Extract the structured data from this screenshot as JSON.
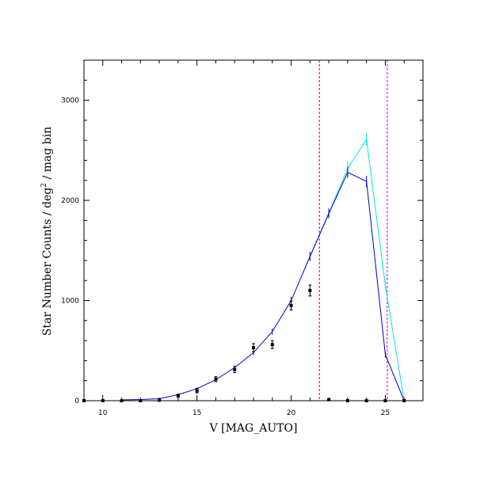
{
  "chart_data": {
    "type": "line",
    "title": "",
    "xlabel": "V [MAG_AUTO]",
    "ylabel_main": "Star Number Counts / deg",
    "ylabel_sup": "2",
    "ylabel_tail": " / mag bin",
    "xlim": [
      9,
      27
    ],
    "ylim": [
      0,
      3400
    ],
    "xticks": [
      10,
      15,
      20,
      25
    ],
    "yticks": [
      0,
      1000,
      2000,
      3000
    ],
    "x_minor_step": 1,
    "y_minor_step": 200,
    "grid": false,
    "colors": {
      "blue": "#0000cc",
      "cyan": "#00e5e5",
      "red_line": "#dd0000",
      "magenta_line": "#cc00cc",
      "points": "#000000"
    },
    "series": [
      {
        "color_key": "blue",
        "x": [
          11,
          12,
          13,
          14,
          15,
          16,
          17,
          18,
          19,
          20,
          21,
          22,
          23,
          24,
          25,
          26
        ],
        "y": [
          8,
          12,
          20,
          60,
          120,
          210,
          330,
          480,
          690,
          1000,
          1440,
          1870,
          2280,
          2190,
          460,
          0
        ],
        "err": [
          3,
          4,
          6,
          10,
          14,
          18,
          22,
          26,
          32,
          38,
          45,
          50,
          55,
          55,
          30,
          5
        ]
      },
      {
        "color_key": "cyan",
        "x": [
          21,
          22,
          23,
          24,
          25,
          26
        ],
        "y": [
          1440,
          1870,
          2320,
          2610,
          1150,
          0
        ],
        "err": [
          45,
          50,
          70,
          60,
          40,
          5
        ]
      },
      {
        "color_key": "points",
        "marker": "square",
        "x": [
          9,
          10,
          11,
          12,
          13,
          14,
          15,
          16,
          17,
          18,
          19,
          20,
          21,
          22,
          23,
          24,
          25,
          26
        ],
        "y": [
          0,
          0,
          0,
          0,
          5,
          50,
          100,
          215,
          310,
          530,
          560,
          950,
          1100,
          10,
          0,
          0,
          0,
          0
        ],
        "err": [
          0,
          0,
          0,
          0,
          6,
          15,
          22,
          25,
          30,
          40,
          40,
          45,
          55,
          5,
          0,
          0,
          0,
          0
        ]
      }
    ],
    "vlines": [
      {
        "x": 21.5,
        "color_key": "red_line",
        "style": "dashed"
      },
      {
        "x": 25.1,
        "color_key": "magenta_line",
        "style": "dashed"
      }
    ]
  }
}
